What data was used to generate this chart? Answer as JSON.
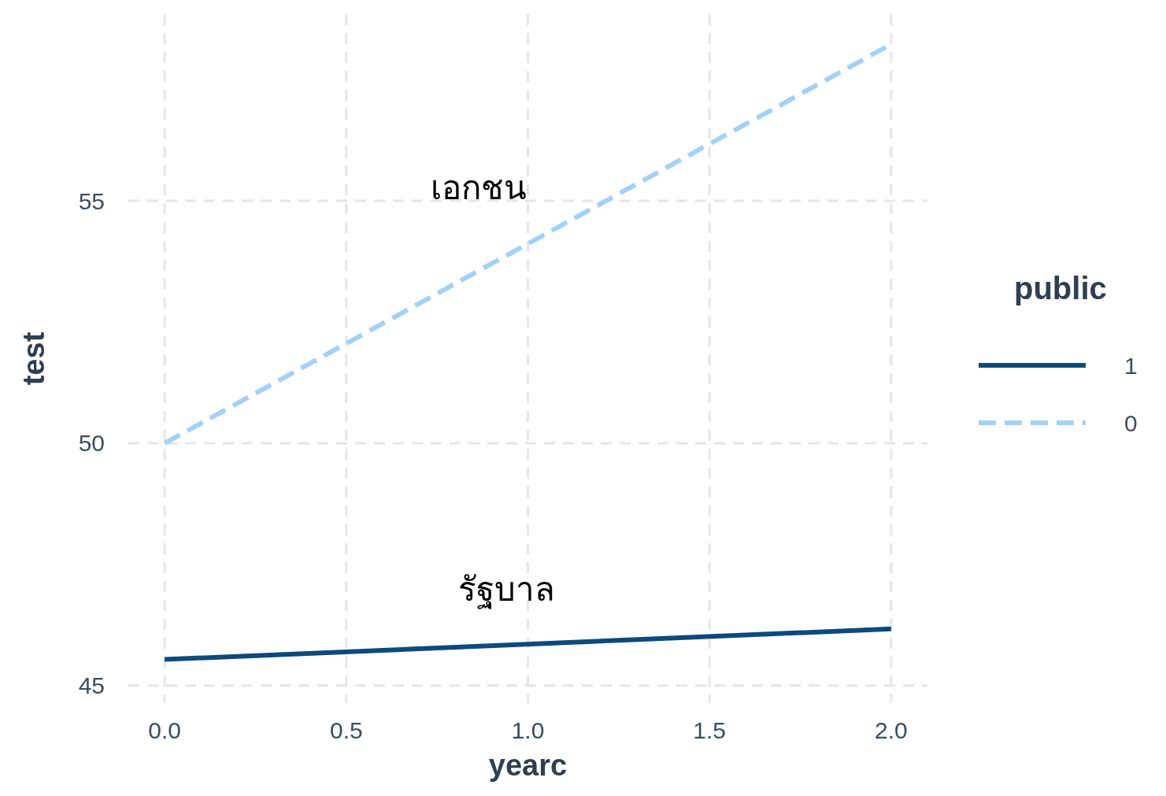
{
  "chart_data": {
    "type": "line",
    "xlabel": "yearc",
    "ylabel": "test",
    "legend_title": "public",
    "legend": "right",
    "grid": true,
    "xlim": [
      -0.1,
      2.1
    ],
    "xticks": [
      {
        "value": 0,
        "label": "0.0"
      },
      0.5,
      {
        "value": 1,
        "label": "1.0"
      },
      1.5,
      {
        "value": 2,
        "label": "2.0"
      }
    ],
    "ylim": [
      44.64,
      58.85
    ],
    "yticks": [
      45,
      50,
      55
    ],
    "x": [
      0,
      2
    ],
    "series": [
      {
        "name": "1",
        "color": "#0d4a7c",
        "line_style": "solid",
        "values": [
          45.54,
          46.17
        ]
      },
      {
        "name": "0",
        "color": "#a3d1f7",
        "line_style": "dashed",
        "values": [
          50,
          58.23
        ]
      }
    ],
    "annotations": [
      "เอกชน",
      "รัฐบาล"
    ]
  }
}
